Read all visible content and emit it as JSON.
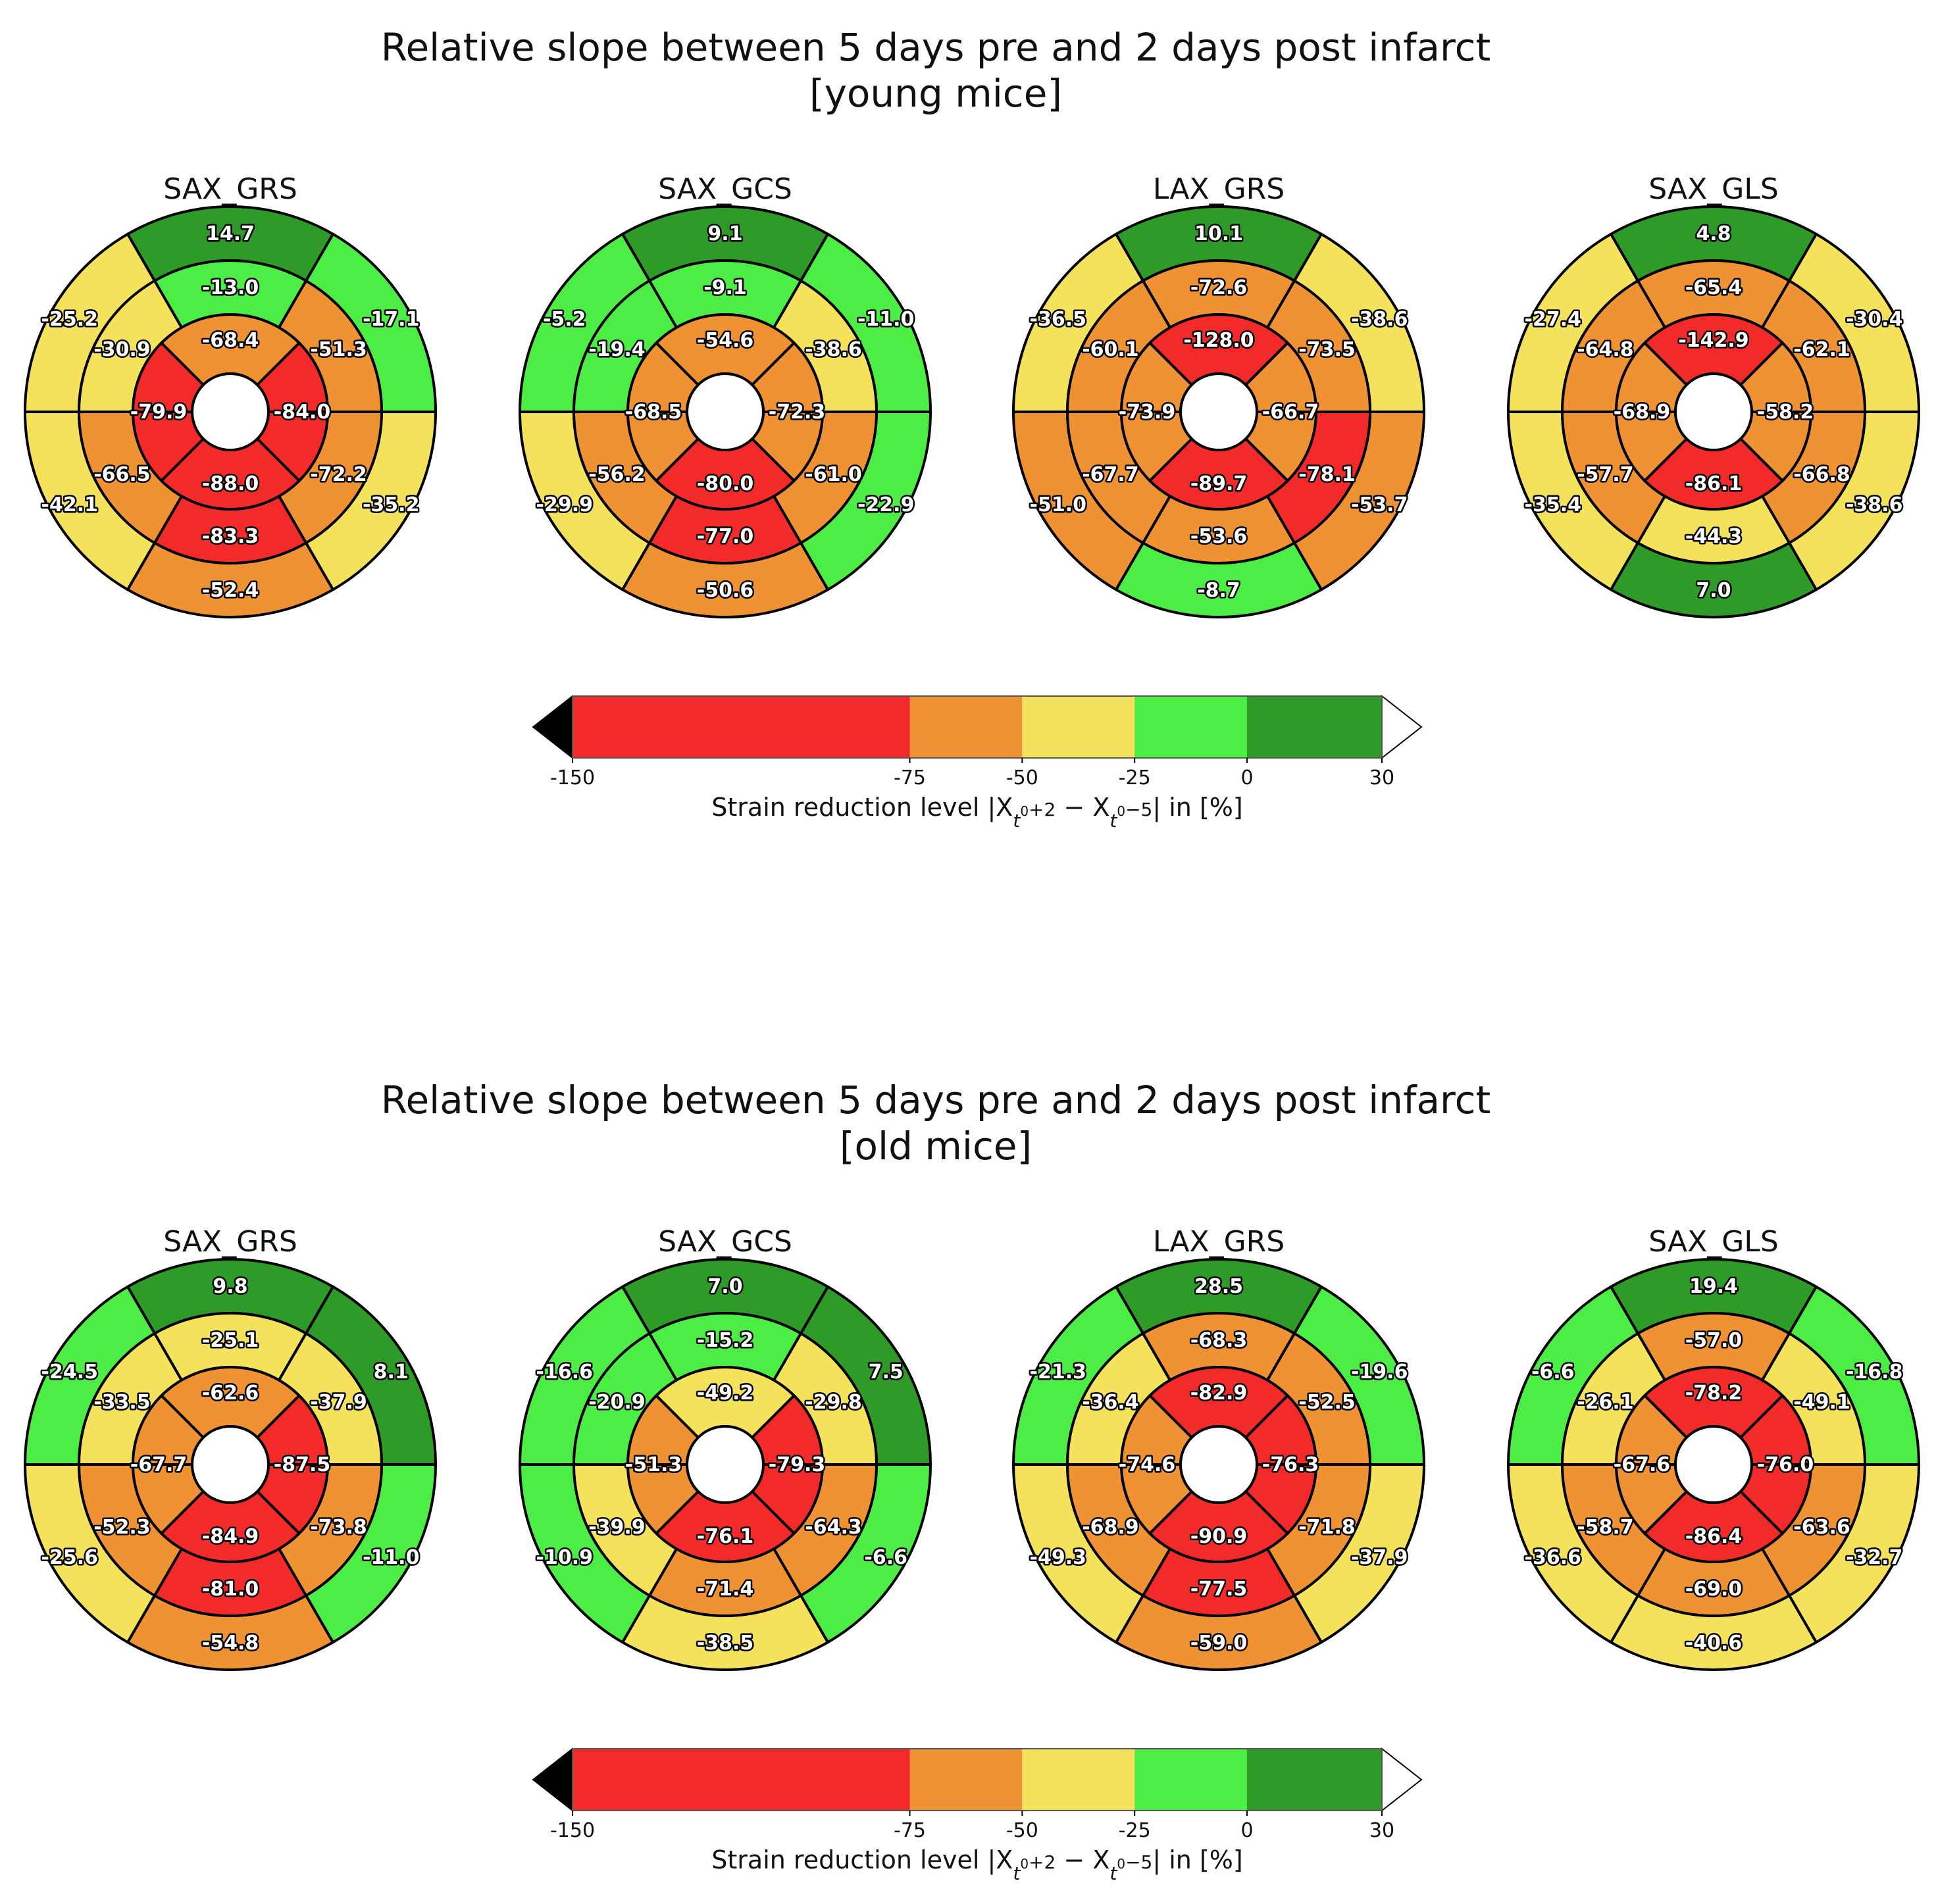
{
  "chart_data": [
    {
      "type": "bullseye",
      "title_line1": "Relative slope between 5 days pre and 2 days post infarct",
      "title_line2": "[young mice]",
      "panels": [
        {
          "title": "SAX_GRS",
          "values": {
            "outer": [
              14.7,
              -17.1,
              -35.2,
              -52.4,
              -42.1,
              -25.2
            ],
            "middle": [
              -13.0,
              -51.3,
              -72.2,
              -83.3,
              -66.5,
              -30.9
            ],
            "inner": [
              -68.4,
              -84.0,
              -88.0,
              -79.9
            ]
          }
        },
        {
          "title": "SAX_GCS",
          "values": {
            "outer": [
              9.1,
              -11.0,
              -22.9,
              -50.6,
              -29.9,
              -5.2
            ],
            "middle": [
              -9.1,
              -38.6,
              -61.0,
              -77.0,
              -56.2,
              -19.4
            ],
            "inner": [
              -54.6,
              -72.3,
              -80.0,
              -68.5
            ]
          }
        },
        {
          "title": "LAX_GRS",
          "values": {
            "outer": [
              10.1,
              -38.6,
              -53.7,
              -8.7,
              -51.0,
              -36.5
            ],
            "middle": [
              -72.6,
              -73.5,
              -78.1,
              -53.6,
              -67.7,
              -60.1
            ],
            "inner": [
              -128.0,
              -66.7,
              -89.7,
              -73.9
            ]
          }
        },
        {
          "title": "SAX_GLS",
          "values": {
            "outer": [
              4.8,
              -30.4,
              -38.6,
              7.0,
              -35.4,
              -27.4
            ],
            "middle": [
              -65.4,
              -62.1,
              -66.8,
              -44.3,
              -57.7,
              -64.8
            ],
            "inner": [
              -142.9,
              -58.2,
              -86.1,
              -68.9
            ]
          }
        }
      ],
      "colorbar": {
        "ticks": [
          -150,
          -75,
          -50,
          -25,
          0,
          30
        ],
        "tick_labels": [
          "-150",
          "-75",
          "-50",
          "-25",
          "0",
          "30"
        ],
        "label": "Strain reduction level |X",
        "label_sub1": "t",
        "label_sub1b": "0",
        "label_mid1": "+2",
        "label_minus": " − X",
        "label_sub2": "t",
        "label_sub2b": "0",
        "label_mid2": "−5",
        "label_end": "| in [%]"
      }
    },
    {
      "type": "bullseye",
      "title_line1": "Relative slope between 5 days pre and 2 days post infarct",
      "title_line2": "[old mice]",
      "panels": [
        {
          "title": "SAX_GRS",
          "values": {
            "outer": [
              9.8,
              8.1,
              -11.0,
              -54.8,
              -25.6,
              -24.5
            ],
            "middle": [
              -25.1,
              -37.9,
              -73.8,
              -81.0,
              -52.3,
              -33.5
            ],
            "inner": [
              -62.6,
              -87.5,
              -84.9,
              -67.7
            ]
          }
        },
        {
          "title": "SAX_GCS",
          "values": {
            "outer": [
              7.0,
              7.5,
              -6.6,
              -38.5,
              -10.9,
              -16.6
            ],
            "middle": [
              -15.2,
              -29.8,
              -64.3,
              -71.4,
              -39.9,
              -20.9
            ],
            "inner": [
              -49.2,
              -79.3,
              -76.1,
              -51.3
            ]
          }
        },
        {
          "title": "LAX_GRS",
          "values": {
            "outer": [
              28.5,
              -19.6,
              -37.9,
              -59.0,
              -49.3,
              -21.3
            ],
            "middle": [
              -68.3,
              -52.5,
              -71.8,
              -77.5,
              -68.9,
              -36.4
            ],
            "inner": [
              -82.9,
              -76.3,
              -90.9,
              -74.6
            ]
          }
        },
        {
          "title": "SAX_GLS",
          "values": {
            "outer": [
              19.4,
              -16.8,
              -32.7,
              -40.6,
              -36.6,
              -6.6
            ],
            "middle": [
              -57.0,
              -49.1,
              -63.6,
              -69.0,
              -58.7,
              -26.1
            ],
            "inner": [
              -78.2,
              -76.0,
              -86.4,
              -67.6
            ]
          }
        }
      ],
      "colorbar": {
        "ticks": [
          -150,
          -75,
          -50,
          -25,
          0,
          30
        ],
        "tick_labels": [
          "-150",
          "-75",
          "-50",
          "-25",
          "0",
          "30"
        ],
        "label": "Strain reduction level |X",
        "label_sub1": "t",
        "label_sub1b": "0",
        "label_mid1": "+2",
        "label_minus": " − X",
        "label_sub2": "t",
        "label_sub2b": "0",
        "label_mid2": "−5",
        "label_end": "| in [%]"
      }
    }
  ],
  "colors": {
    "red": "#f22a2a",
    "orange": "#ee9234",
    "yellow": "#f4e25c",
    "lightgreen": "#4cee46",
    "darkgreen": "#2e9a27",
    "under": "#000000",
    "over": "#ffffff"
  }
}
